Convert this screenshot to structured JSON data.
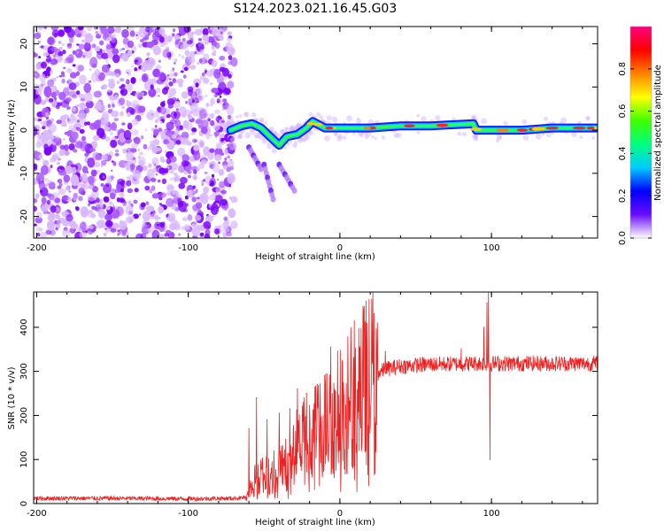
{
  "title": "S124.2023.021.16.45.G03",
  "chart_data": [
    {
      "type": "heatmap",
      "name": "spectrogram",
      "xlabel": "Height of straight line (km)",
      "ylabel": "Frequency (Hz)",
      "xlim": [
        -202,
        170
      ],
      "ylim": [
        -25,
        24
      ],
      "x_ticks": [
        -200,
        -100,
        0,
        100
      ],
      "y_ticks": [
        -20,
        -10,
        0,
        10,
        20
      ],
      "noise_region_x": [
        -202,
        -72
      ],
      "signal_region_x": [
        -72,
        170
      ],
      "signal_track": [
        {
          "x": -72,
          "f": 0.0
        },
        {
          "x": -65,
          "f": 1.0
        },
        {
          "x": -58,
          "f": 1.5
        },
        {
          "x": -52,
          "f": 0.5
        },
        {
          "x": -46,
          "f": -1.5
        },
        {
          "x": -40,
          "f": -3.5
        },
        {
          "x": -35,
          "f": -1.5
        },
        {
          "x": -28,
          "f": -1.0
        },
        {
          "x": -22,
          "f": 0.5
        },
        {
          "x": -18,
          "f": 2.0
        },
        {
          "x": -10,
          "f": 0.5
        },
        {
          "x": 0,
          "f": 0.5
        },
        {
          "x": 20,
          "f": 0.5
        },
        {
          "x": 40,
          "f": 1.0
        },
        {
          "x": 60,
          "f": 1.0
        },
        {
          "x": 88,
          "f": 1.5
        },
        {
          "x": 90,
          "f": 0.0
        },
        {
          "x": 120,
          "f": 0.0
        },
        {
          "x": 140,
          "f": 0.5
        },
        {
          "x": 170,
          "f": 0.5
        }
      ],
      "side_lobes": [
        {
          "x1": -60,
          "f1": -4,
          "x2": -52,
          "f2": -9
        },
        {
          "x1": -50,
          "f1": -8,
          "x2": -44,
          "f2": -16
        },
        {
          "x1": -40,
          "f1": -8,
          "x2": -30,
          "f2": -14
        }
      ],
      "colorbar": {
        "label": "Normalized spectral amplitude",
        "range": [
          0.0,
          1.0
        ],
        "ticks": [
          0.0,
          0.2,
          0.4,
          0.6,
          0.8
        ],
        "tick_labels": [
          "0.0",
          "0.2",
          "0.4",
          "0.6",
          "0.8"
        ],
        "stops": [
          "#ffffff",
          "#6a0dff",
          "#0000ff",
          "#00ccff",
          "#00ff80",
          "#40ff00",
          "#ffff00",
          "#ff8000",
          "#ff0000",
          "#ff0080"
        ]
      }
    },
    {
      "type": "line",
      "name": "snr",
      "xlabel": "Height of straight line (km)",
      "ylabel": "SNR (10 * v/v)",
      "xlim": [
        -202,
        170
      ],
      "ylim": [
        0,
        480
      ],
      "x_ticks": [
        -200,
        -100,
        0,
        100
      ],
      "y_ticks": [
        0,
        100,
        200,
        300,
        400
      ],
      "color": "#ee2020",
      "envelope": [
        {
          "x": -202,
          "v": 12
        },
        {
          "x": -150,
          "v": 12
        },
        {
          "x": -100,
          "v": 11
        },
        {
          "x": -70,
          "v": 12
        },
        {
          "x": -62,
          "v": 14
        },
        {
          "x": -55,
          "v": 60
        },
        {
          "x": -48,
          "v": 70
        },
        {
          "x": -40,
          "v": 75
        },
        {
          "x": -35,
          "v": 90
        },
        {
          "x": -30,
          "v": 120
        },
        {
          "x": -25,
          "v": 140
        },
        {
          "x": -20,
          "v": 150
        },
        {
          "x": -15,
          "v": 165
        },
        {
          "x": -10,
          "v": 180
        },
        {
          "x": -5,
          "v": 200
        },
        {
          "x": 0,
          "v": 215
        },
        {
          "x": 5,
          "v": 235
        },
        {
          "x": 10,
          "v": 255
        },
        {
          "x": 15,
          "v": 270
        },
        {
          "x": 20,
          "v": 285
        },
        {
          "x": 25,
          "v": 295
        },
        {
          "x": 30,
          "v": 305
        },
        {
          "x": 40,
          "v": 312
        },
        {
          "x": 60,
          "v": 316
        },
        {
          "x": 90,
          "v": 318
        },
        {
          "x": 120,
          "v": 318
        },
        {
          "x": 170,
          "v": 318
        }
      ],
      "spikes": [
        {
          "x": -60,
          "v": 170
        },
        {
          "x": -55,
          "v": 240
        },
        {
          "x": -48,
          "v": 190
        },
        {
          "x": -40,
          "v": 205
        },
        {
          "x": -33,
          "v": 215
        },
        {
          "x": -28,
          "v": 260
        },
        {
          "x": -22,
          "v": 250
        },
        {
          "x": -15,
          "v": 270
        },
        {
          "x": -10,
          "v": 290
        },
        {
          "x": -6,
          "v": 355
        },
        {
          "x": 10,
          "v": 310
        },
        {
          "x": 15,
          "v": 320
        },
        {
          "x": 30,
          "v": 345
        },
        {
          "x": 80,
          "v": 350
        },
        {
          "x": 95,
          "v": 400
        },
        {
          "x": 97,
          "v": 455
        },
        {
          "x": 98,
          "v": 480
        },
        {
          "x": 99,
          "v": 100
        }
      ]
    }
  ]
}
